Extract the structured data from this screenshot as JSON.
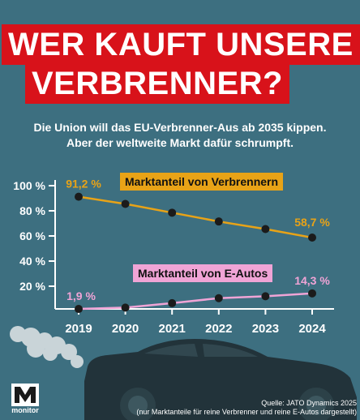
{
  "headline": {
    "line1": "WER KAUFT UNSERE",
    "line2": "VERBRENNER?"
  },
  "subtitle": {
    "line1": "Die Union will das EU-Verbrenner-Aus ab 2035 kippen.",
    "line2": "Aber der weltweite Markt dafür schrumpft."
  },
  "colors": {
    "background": "#3d6f80",
    "headline_bar": "#d8121a",
    "combustion": "#e8a317",
    "ev": "#f0a4d6"
  },
  "chart_data": {
    "type": "line",
    "x": [
      "2019",
      "2020",
      "2021",
      "2022",
      "2023",
      "2024"
    ],
    "y_ticks": [
      "100 %",
      "80 %",
      "60 %",
      "40 %",
      "20 %"
    ],
    "ylim": [
      0,
      100
    ],
    "grid": false,
    "series": [
      {
        "name": "Marktanteil von Verbrennern",
        "values": [
          91.2,
          85.5,
          78.5,
          71.5,
          65.5,
          58.7
        ],
        "color": "#e8a317",
        "start_label": "91,2 %",
        "end_label": "58,7 %"
      },
      {
        "name": "Marktanteil von E-Autos",
        "values": [
          1.9,
          3.0,
          6.5,
          10.5,
          12.0,
          14.3
        ],
        "color": "#f0a4d6",
        "start_label": "1,9 %",
        "end_label": "14,3 %"
      }
    ]
  },
  "source": {
    "line1": "Quelle: JATO Dynamics 2025",
    "line2": "(nur Marktanteile für reine Verbrenner und reine E-Autos dargestellt)"
  },
  "logo": {
    "text": "monitor",
    "icon": "monitor-m-logo-icon"
  },
  "illustration": {
    "icon": "car-silhouette-icon"
  }
}
